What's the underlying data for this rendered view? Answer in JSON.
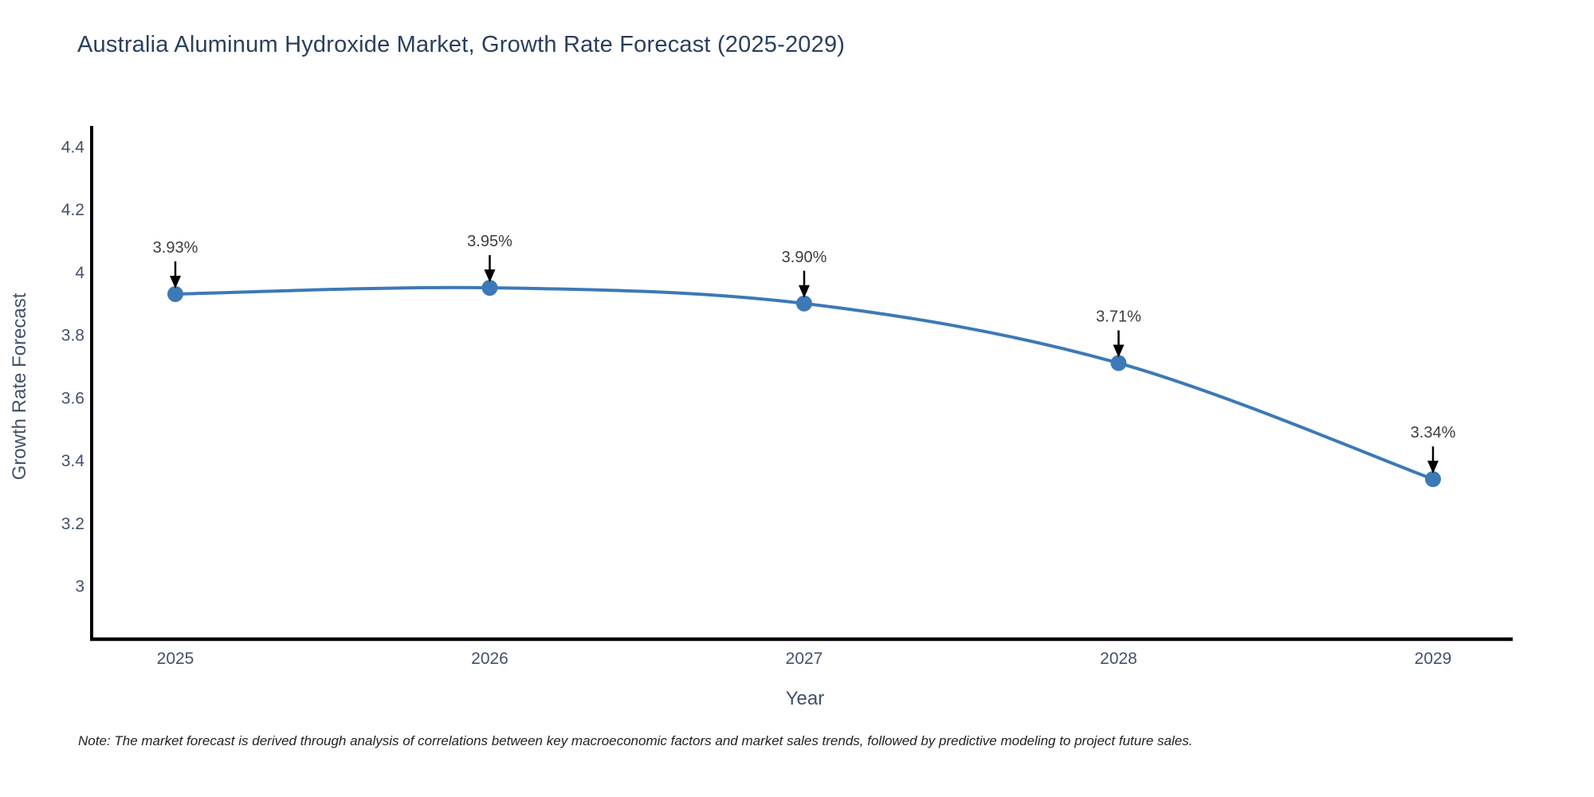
{
  "chart": {
    "note": "Note: The market forecast is derived through analysis of correlations between key macroeconomic factors and market sales trends, followed by predictive modeling to project future sales."
  },
  "chart_data": {
    "type": "line",
    "title": "Australia Aluminum Hydroxide Market, Growth Rate Forecast (2025-2029)",
    "xlabel": "Year",
    "ylabel": "Growth Rate Forecast",
    "x": [
      2025,
      2026,
      2027,
      2028,
      2029
    ],
    "values": [
      3.93,
      3.95,
      3.9,
      3.71,
      3.34
    ],
    "point_labels": [
      "3.93%",
      "3.95%",
      "3.90%",
      "3.71%",
      "3.34%"
    ],
    "yticks": [
      3,
      3.2,
      3.4,
      3.6,
      3.8,
      4,
      4.2,
      4.4
    ],
    "ylim": [
      2.83,
      4.47
    ],
    "grid": false,
    "legend": "none",
    "line_shape": "spline",
    "colors": {
      "line": "#3c79b6",
      "marker": "#3c79b6",
      "axis_line": "#000000",
      "title_text": "#2a3f5f",
      "axis_title_text": "#42516b",
      "tick_text": "#42516b",
      "annotation_text": "#3d3d3d",
      "annotation_arrow": "#000000",
      "note_text": "#222222",
      "background": "#ffffff"
    }
  }
}
